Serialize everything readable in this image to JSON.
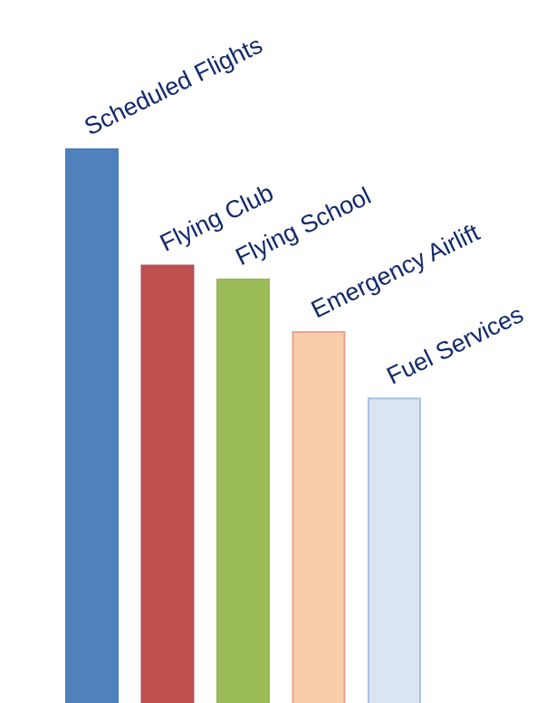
{
  "chart_data": {
    "type": "bar",
    "title": "",
    "xlabel": "",
    "ylabel": "",
    "categories": [
      "Scheduled Flights",
      "Flying Club",
      "Flying School",
      "Emergency Airlift",
      "Fuel Services"
    ],
    "values": [
      100,
      79,
      76.5,
      67,
      55
    ],
    "ylim": [
      0,
      100
    ],
    "grid": false,
    "legend": "none",
    "colors": [
      "#4f81bd",
      "#c0504d",
      "#9bbb59",
      "#f9ccac",
      "#dbe5f1"
    ],
    "edge_colors": [
      "#4a7eba",
      "#b3505a",
      "#97b85a",
      "#e8a48c",
      "#aac0e0"
    ]
  }
}
